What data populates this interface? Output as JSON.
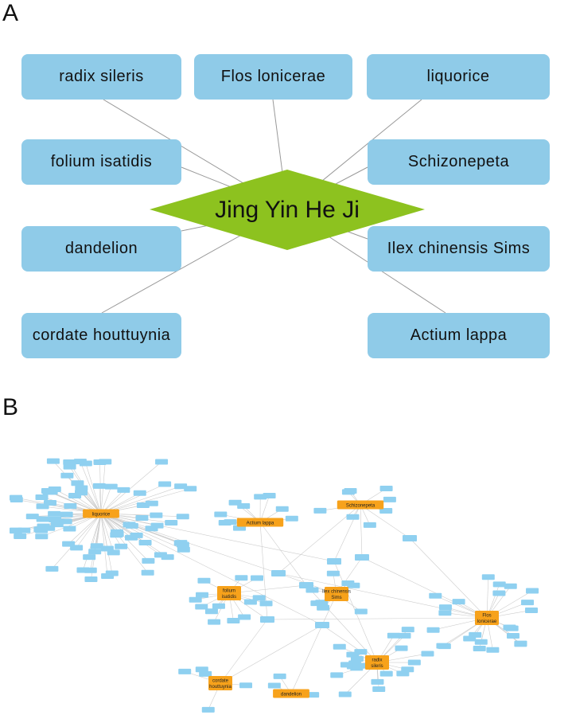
{
  "panel_a": {
    "label": "A",
    "center": "Jing Yin He Ji",
    "herbs": [
      "radix sileris",
      "Flos lonicerae",
      "liquorice",
      "folium isatidis",
      "Schizonepeta",
      "dandelion",
      "Ilex chinensis Sims",
      "cordate houttuynia",
      "Actium lappa"
    ],
    "colors": {
      "herb_box": "#8fcbe8",
      "center_diamond": "#8dc21f",
      "edge": "#999999"
    }
  },
  "panel_b": {
    "label": "B",
    "hubs": [
      "liquorice",
      "Actium lappa",
      "Schizonepeta",
      "folium isatidis",
      "Ilex chinensis Sims",
      "Flos lonicerae",
      "radix sileris",
      "cordate houttuynia",
      "dandelion"
    ],
    "colors": {
      "hub": "#f7a21b",
      "compound": "#8fd0f0",
      "edge": "#cccccc"
    }
  }
}
